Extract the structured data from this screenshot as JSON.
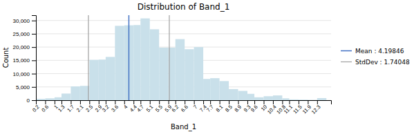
{
  "chart_data": {
    "type": "histogram",
    "title": "Distribution of Band_1",
    "xlabel": "Band_1",
    "ylabel": "Count",
    "bins": [
      0.2,
      0.6,
      1.0,
      1.3,
      1.7,
      2.1,
      2.5,
      2.9,
      3.2,
      3.6,
      4.0,
      4.4,
      4.7,
      5.1,
      5.5,
      5.9,
      6.2,
      6.6,
      7.0,
      7.4,
      7.7,
      8.1,
      8.5,
      8.9,
      9.3,
      9.6,
      10.0,
      10.4,
      10.8,
      11.1,
      11.5,
      11.9,
      12.3,
      12.7
    ],
    "values": [
      500,
      700,
      1100,
      2500,
      5200,
      5400,
      15200,
      15300,
      16300,
      28000,
      28200,
      28300,
      30800,
      26700,
      19800,
      19800,
      23000,
      19200,
      20000,
      8000,
      8300,
      7200,
      4200,
      3500,
      2400,
      1100,
      1500,
      1800,
      700,
      300,
      200,
      100,
      800
    ],
    "color": "#c9e0ea",
    "series": [
      {
        "name": "Mean : 4.19846",
        "type": "vline",
        "color": "#4472C4",
        "values": [
          4.19846
        ]
      },
      {
        "name": "StdDev : 1.74048",
        "type": "vline",
        "color": "#a0a0a0",
        "values": [
          2.45798,
          5.93894
        ]
      }
    ],
    "xlim": [
      0.2,
      12.9
    ],
    "xticks": [
      0.2,
      0.6,
      1,
      1.3,
      1.7,
      2.1,
      2.5,
      2.9,
      3.2,
      3.6,
      4,
      4.4,
      4.7,
      5.1,
      5.5,
      5.9,
      6.2,
      6.6,
      7,
      7.4,
      7.7,
      8.1,
      8.5,
      8.9,
      9.3,
      9.6,
      10,
      10.4,
      10.8,
      11.1,
      11.5,
      11.9,
      12.3
    ],
    "ylim": [
      0,
      32000
    ],
    "yticks": [
      0,
      {
        "value": 5000,
        "label": "5,000"
      },
      {
        "value": 10000,
        "label": "10,000"
      },
      {
        "value": 15000,
        "label": "15,000"
      },
      {
        "value": 20000,
        "label": "20,000"
      },
      {
        "value": 25000,
        "label": "25,000"
      },
      {
        "value": 30000,
        "label": "30,000"
      }
    ],
    "grid": true,
    "legend": "right"
  }
}
